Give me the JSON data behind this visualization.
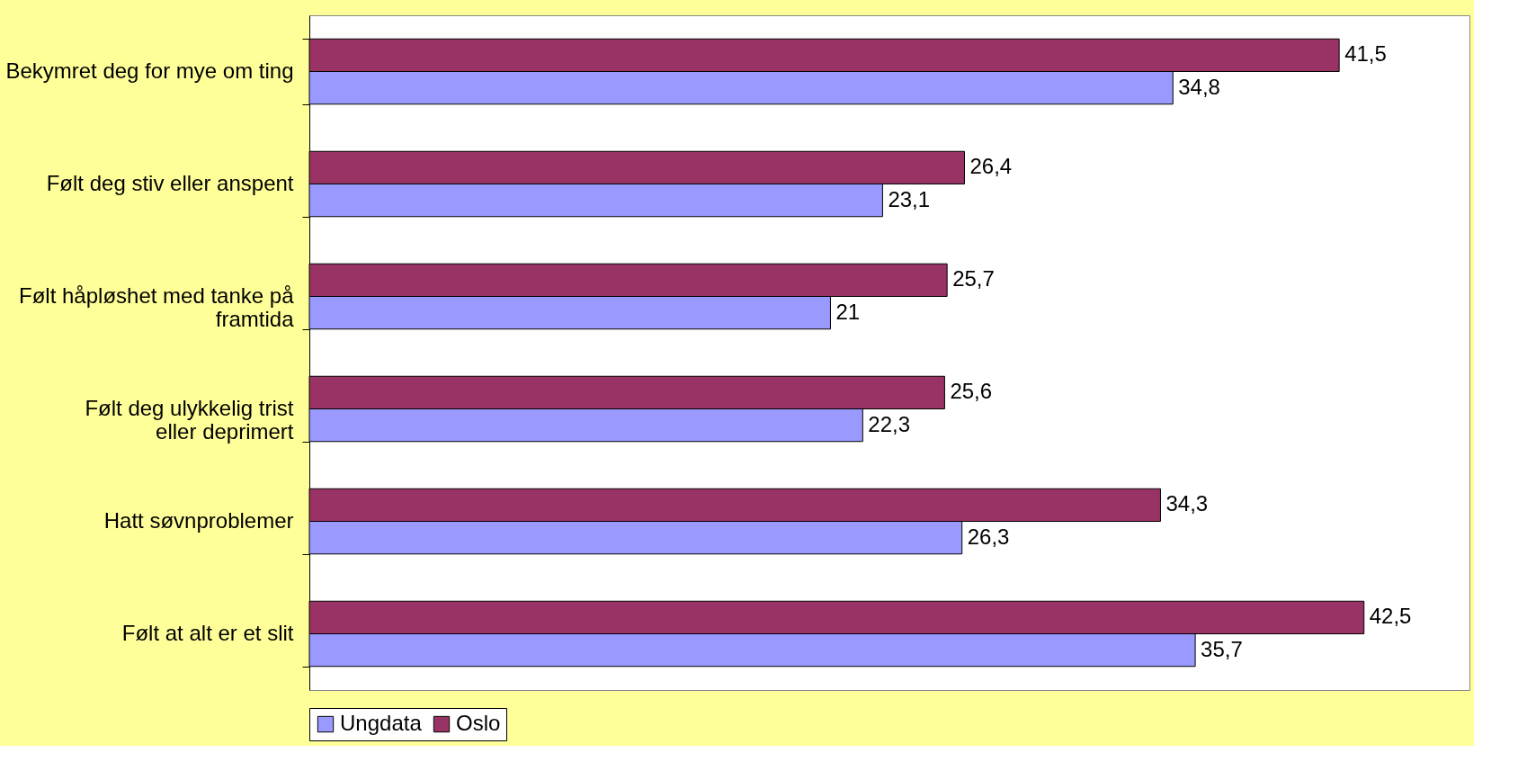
{
  "chart_data": {
    "type": "bar",
    "orientation": "horizontal",
    "categories": [
      "Bekymret deg for mye om ting",
      "Følt deg stiv eller anspent",
      "Følt håpløshet med tanke på framtida",
      "Følt deg ulykkelig trist eller deprimert",
      "Hatt søvnproblemer",
      "Følt at alt er et slit"
    ],
    "series": [
      {
        "name": "Ungdata",
        "color": "#9999ff",
        "values": [
          34.8,
          23.1,
          21,
          22.3,
          26.3,
          35.7
        ],
        "value_labels": [
          "34,8",
          "23,1",
          "21",
          "22,3",
          "26,3",
          "35,7"
        ]
      },
      {
        "name": "Oslo",
        "color": "#993366",
        "values": [
          41.5,
          26.4,
          25.7,
          25.6,
          34.3,
          42.5
        ],
        "value_labels": [
          "41,5",
          "26,4",
          "25,7",
          "25,6",
          "34,3",
          "42,5"
        ]
      }
    ],
    "legend": "bottom",
    "grid": false,
    "tick_labels": "y"
  }
}
